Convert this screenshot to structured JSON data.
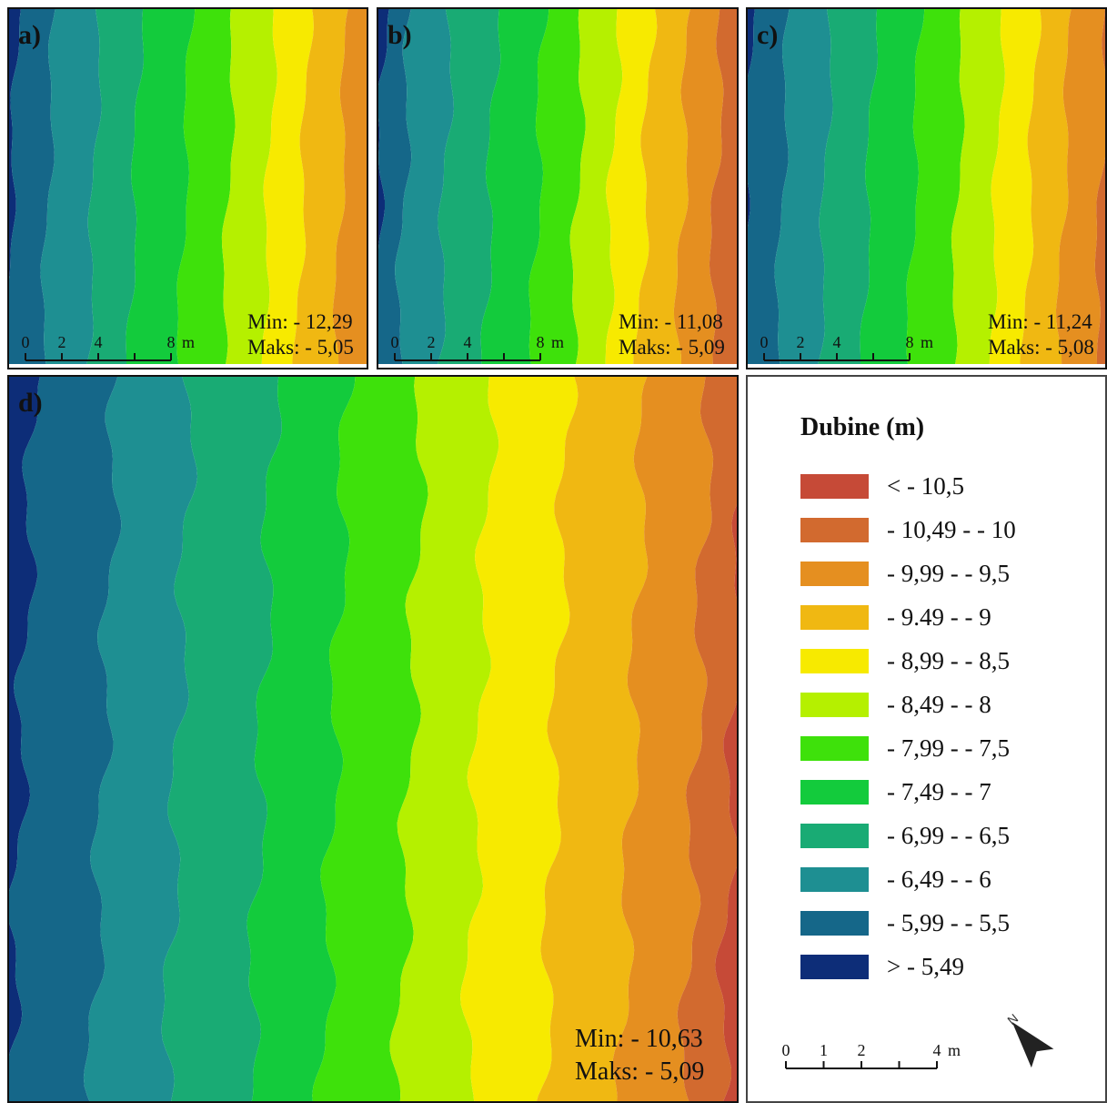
{
  "panels": [
    {
      "id": "a",
      "label": "a)",
      "min": "Min: - 12,29",
      "max": "Maks: - 5,05"
    },
    {
      "id": "b",
      "label": "b)",
      "min": "Min: - 11,08",
      "max": "Maks: - 5,09"
    },
    {
      "id": "c",
      "label": "c)",
      "min": "Min: - 11,24",
      "max": "Maks: - 5,08"
    },
    {
      "id": "d",
      "label": "d)",
      "min": "Min: - 10,63",
      "max": "Maks: - 5,09"
    }
  ],
  "small_scale": {
    "ticks": [
      "0",
      "2",
      "4",
      "8"
    ],
    "unit": "m"
  },
  "legend": {
    "title": "Dubine (m)",
    "items": [
      {
        "label": "< - 10,5",
        "color": "#c64a37"
      },
      {
        "label": "- 10,49 - - 10",
        "color": "#d26a2f"
      },
      {
        "label": "- 9,99 - - 9,5",
        "color": "#e58f20"
      },
      {
        "label": "- 9.49 - - 9",
        "color": "#f0b812"
      },
      {
        "label": "- 8,99 - - 8,5",
        "color": "#f7ea00"
      },
      {
        "label": "- 8,49 - - 8",
        "color": "#b5f000"
      },
      {
        "label": "- 7,99 - - 7,5",
        "color": "#3ee10b"
      },
      {
        "label": "- 7,49 - - 7",
        "color": "#13cb3c"
      },
      {
        "label": "- 6,99 - - 6,5",
        "color": "#19ab74"
      },
      {
        "label": "- 6,49 - - 6",
        "color": "#1e8f92"
      },
      {
        "label": "- 5,99 - - 5,5",
        "color": "#156789"
      },
      {
        "label": "> - 5,49",
        "color": "#0d2d78"
      }
    ],
    "scale": {
      "ticks": [
        "0",
        "1",
        "2",
        "4"
      ],
      "unit": "m"
    },
    "north_icon": "north-arrow-icon"
  }
}
